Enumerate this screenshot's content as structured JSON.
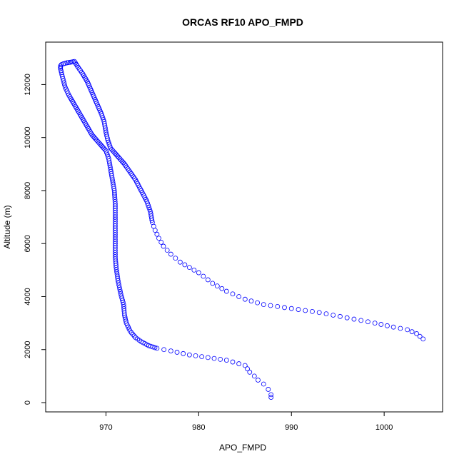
{
  "chart_data": {
    "type": "scatter",
    "title": "ORCAS RF10 APO_FMPD",
    "xlabel": "APO_FMPD",
    "ylabel": "Altitude (m)",
    "xlim": [
      963.5,
      1006.3
    ],
    "ylim": [
      -350,
      13600
    ],
    "xticks": [
      970,
      980,
      990,
      1000
    ],
    "yticks": [
      0,
      2000,
      4000,
      6000,
      8000,
      10000,
      12000
    ],
    "grid": false,
    "marker_color": "#0000ff",
    "marker": "open-circle",
    "anchors": {
      "upper": [
        [
          965.1,
          12650
        ],
        [
          965.1,
          12700
        ],
        [
          965.2,
          12750
        ],
        [
          965.4,
          12780
        ],
        [
          965.8,
          12820
        ],
        [
          966.3,
          12850
        ],
        [
          966.6,
          12870
        ],
        [
          967.0,
          12650
        ],
        [
          967.5,
          12400
        ],
        [
          968.0,
          12100
        ],
        [
          968.5,
          11700
        ],
        [
          969.0,
          11300
        ],
        [
          969.5,
          10900
        ],
        [
          969.8,
          10600
        ],
        [
          970.0,
          10200
        ],
        [
          970.2,
          9900
        ],
        [
          970.5,
          9600
        ],
        [
          971.0,
          9400
        ],
        [
          971.5,
          9200
        ],
        [
          972.0,
          9000
        ],
        [
          972.6,
          8700
        ],
        [
          973.2,
          8400
        ],
        [
          973.8,
          8000
        ],
        [
          974.4,
          7600
        ],
        [
          974.8,
          7200
        ],
        [
          975.0,
          6800
        ],
        [
          975.3,
          6500
        ],
        [
          975.7,
          6200
        ],
        [
          976.2,
          5900
        ],
        [
          977.0,
          5600
        ],
        [
          978.0,
          5300
        ],
        [
          979.0,
          5100
        ],
        [
          980.0,
          4900
        ],
        [
          981.5,
          4500
        ],
        [
          983.0,
          4200
        ],
        [
          985.0,
          3900
        ],
        [
          987.0,
          3700
        ],
        [
          990.0,
          3550
        ],
        [
          993.0,
          3400
        ],
        [
          996.0,
          3200
        ],
        [
          999.0,
          3000
        ],
        [
          1001.0,
          2850
        ],
        [
          1002.5,
          2750
        ],
        [
          1003.5,
          2600
        ],
        [
          1004.2,
          2400
        ]
      ],
      "lower": [
        [
          965.1,
          12600
        ],
        [
          965.3,
          12300
        ],
        [
          965.6,
          11900
        ],
        [
          966.0,
          11600
        ],
        [
          966.5,
          11300
        ],
        [
          967.0,
          11000
        ],
        [
          967.5,
          10700
        ],
        [
          968.0,
          10400
        ],
        [
          968.5,
          10100
        ],
        [
          969.0,
          9900
        ],
        [
          969.5,
          9700
        ],
        [
          970.0,
          9500
        ],
        [
          970.3,
          9200
        ],
        [
          970.5,
          8800
        ],
        [
          970.7,
          8400
        ],
        [
          970.9,
          8000
        ],
        [
          971.0,
          7500
        ],
        [
          971.0,
          7000
        ],
        [
          971.0,
          6500
        ],
        [
          971.0,
          6000
        ],
        [
          971.0,
          5500
        ],
        [
          971.1,
          5100
        ],
        [
          971.3,
          4600
        ],
        [
          971.6,
          4100
        ],
        [
          971.9,
          3700
        ],
        [
          972.0,
          3300
        ],
        [
          972.2,
          3000
        ],
        [
          972.6,
          2700
        ],
        [
          973.2,
          2450
        ],
        [
          973.8,
          2300
        ],
        [
          974.6,
          2150
        ],
        [
          975.5,
          2050
        ],
        [
          977.0,
          1950
        ],
        [
          979.0,
          1800
        ],
        [
          981.0,
          1700
        ],
        [
          983.0,
          1600
        ],
        [
          985.0,
          1400
        ],
        [
          985.5,
          1150
        ],
        [
          986.0,
          1000
        ],
        [
          986.4,
          850
        ],
        [
          987.0,
          700
        ],
        [
          987.5,
          500
        ],
        [
          987.8,
          300
        ],
        [
          987.8,
          200
        ]
      ]
    }
  }
}
